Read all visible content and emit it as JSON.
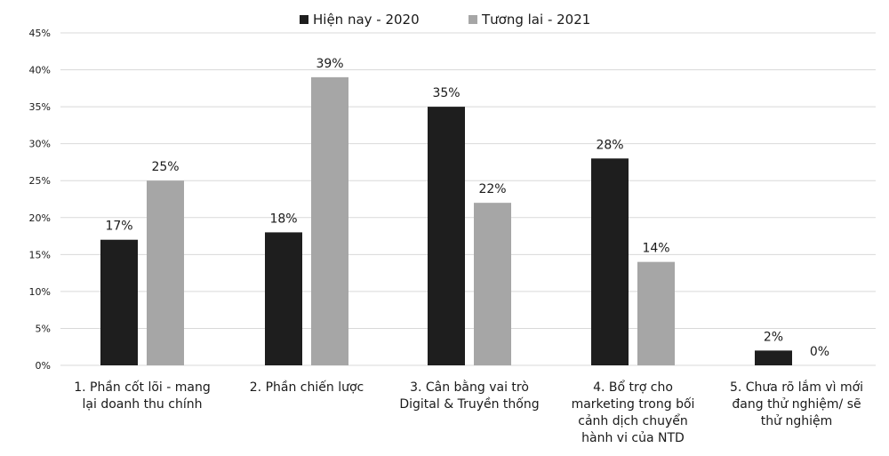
{
  "chart_data": {
    "type": "bar",
    "categories": [
      [
        "1. Phần cốt lõi - mang",
        "lại doanh thu chính"
      ],
      [
        "2. Phần chiến lược"
      ],
      [
        "3. Cân bằng vai trò",
        "Digital & Truyền thống"
      ],
      [
        "4. Bổ trợ cho",
        "marketing trong bối",
        "cảnh dịch chuyển",
        "hành vi của NTD"
      ],
      [
        "5. Chưa rõ lắm vì mới",
        "đang thử nghiệm/ sẽ",
        "thử nghiệm"
      ]
    ],
    "series": [
      {
        "name": "Hiện nay - 2020",
        "values": [
          17,
          18,
          35,
          28,
          2
        ],
        "labels": [
          "17%",
          "18%",
          "35%",
          "28%",
          "2%"
        ],
        "color": "#1e1e1e"
      },
      {
        "name": "Tương lai - 2021",
        "values": [
          25,
          39,
          22,
          14,
          0
        ],
        "labels": [
          "25%",
          "39%",
          "22%",
          "14%",
          "0%"
        ],
        "color": "#a6a6a6"
      }
    ],
    "yticks": [
      "0%",
      "5%",
      "10%",
      "15%",
      "20%",
      "25%",
      "30%",
      "35%",
      "40%",
      "45%"
    ],
    "ylim": [
      0,
      45
    ],
    "grid": true,
    "legend_position": "top-center",
    "gridline_color": "#d9d9d9"
  }
}
